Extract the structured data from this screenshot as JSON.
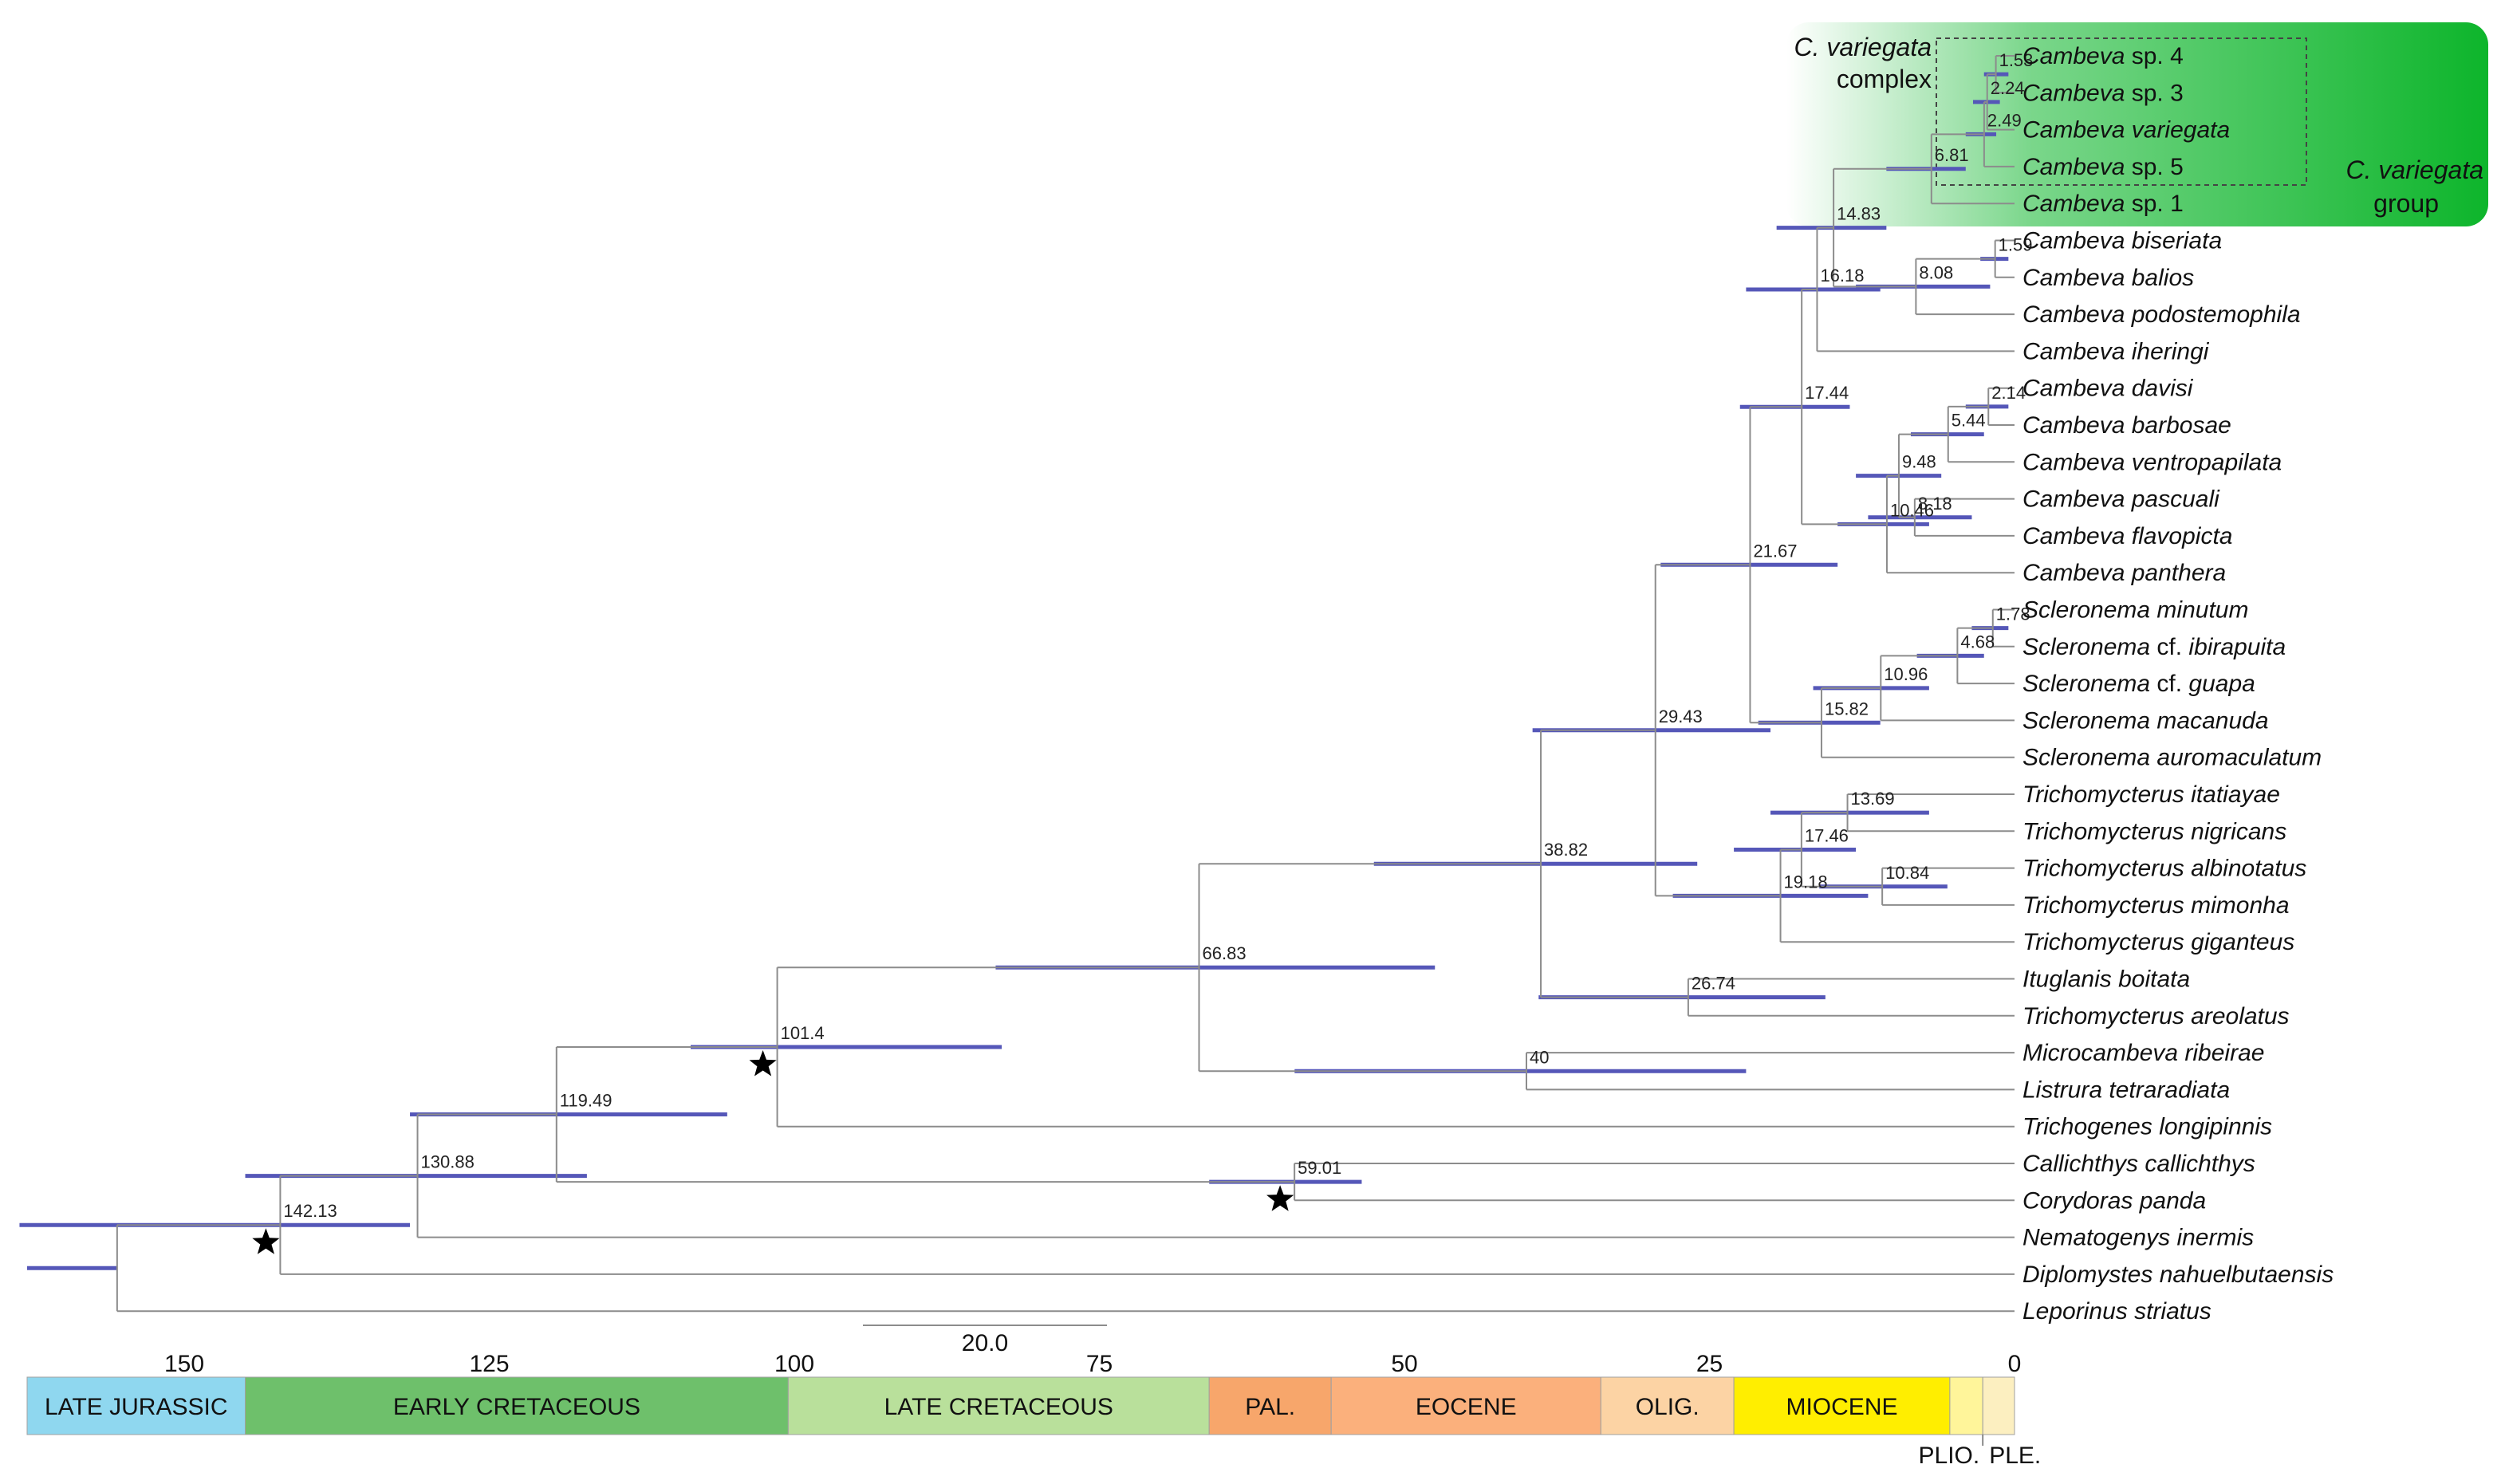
{
  "scale_bar": {
    "label": "20.0",
    "length_ma": 20
  },
  "axis": {
    "ticks": [
      150,
      125,
      100,
      75,
      50,
      25,
      0
    ]
  },
  "periods": [
    {
      "label": "LATE JURASSIC",
      "start": 163.5,
      "end": 145,
      "color": "#8fd7ef"
    },
    {
      "label": "EARLY CRETACEOUS",
      "start": 145,
      "end": 100.5,
      "color": "#6ec06b"
    },
    {
      "label": "LATE CRETACEOUS",
      "start": 100.5,
      "end": 66,
      "color": "#b9e09b"
    },
    {
      "label": "PAL.",
      "start": 66,
      "end": 56,
      "color": "#f7a66b"
    },
    {
      "label": "EOCENE",
      "start": 56,
      "end": 33.9,
      "color": "#fbb07c"
    },
    {
      "label": "OLIG.",
      "start": 33.9,
      "end": 23,
      "color": "#fcd3a4"
    },
    {
      "label": "MIOCENE",
      "start": 23,
      "end": 5.3,
      "color": "#ffee00"
    },
    {
      "label": "",
      "start": 5.3,
      "end": 2.6,
      "color": "#fff59a"
    },
    {
      "label": "",
      "start": 2.6,
      "end": 0,
      "color": "#fcefc0"
    }
  ],
  "period_small_labels": {
    "plio": "PLIO.",
    "ple": "PLE."
  },
  "groups": {
    "complex_label_line1": "C. variegata",
    "complex_label_line2": "complex",
    "group_label_line1": "C. variegata",
    "group_label_line2": "group",
    "group_color": "#0db52b"
  },
  "taxa": [
    {
      "id": "c4",
      "genus": "Cambeva",
      "epithet": "sp. 4"
    },
    {
      "id": "c3",
      "genus": "Cambeva",
      "epithet": "sp. 3"
    },
    {
      "id": "cvar",
      "genus": "Cambeva",
      "epithet": "variegata"
    },
    {
      "id": "c5",
      "genus": "Cambeva",
      "epithet": "sp. 5"
    },
    {
      "id": "c1",
      "genus": "Cambeva",
      "epithet": "sp. 1"
    },
    {
      "id": "cbis",
      "genus": "Cambeva",
      "epithet": "biseriata"
    },
    {
      "id": "cbal",
      "genus": "Cambeva",
      "epithet": "balios"
    },
    {
      "id": "cpod",
      "genus": "Cambeva",
      "epithet": "podostemophila"
    },
    {
      "id": "cihe",
      "genus": "Cambeva",
      "epithet": "iheringi"
    },
    {
      "id": "cdav",
      "genus": "Cambeva",
      "epithet": "davisi"
    },
    {
      "id": "cbar",
      "genus": "Cambeva",
      "epithet": "barbosae"
    },
    {
      "id": "cven",
      "genus": "Cambeva",
      "epithet": "ventropapilata"
    },
    {
      "id": "cpas",
      "genus": "Cambeva",
      "epithet": "pascuali"
    },
    {
      "id": "cfla",
      "genus": "Cambeva",
      "epithet": "flavopicta"
    },
    {
      "id": "cpan",
      "genus": "Cambeva",
      "epithet": "panthera"
    },
    {
      "id": "smin",
      "genus": "Scleronema",
      "epithet": "minutum"
    },
    {
      "id": "sibi",
      "genus": "Scleronema",
      "epithet": "cf. ibirapuita"
    },
    {
      "id": "sgua",
      "genus": "Scleronema",
      "epithet": "cf. guapa"
    },
    {
      "id": "smac",
      "genus": "Scleronema",
      "epithet": "macanuda"
    },
    {
      "id": "saur",
      "genus": "Scleronema",
      "epithet": "auromaculatum"
    },
    {
      "id": "tita",
      "genus": "Trichomycterus",
      "epithet": "itatiayae"
    },
    {
      "id": "tnig",
      "genus": "Trichomycterus",
      "epithet": "nigricans"
    },
    {
      "id": "talb",
      "genus": "Trichomycterus",
      "epithet": "albinotatus"
    },
    {
      "id": "tmim",
      "genus": "Trichomycterus",
      "epithet": "mimonha"
    },
    {
      "id": "tgig",
      "genus": "Trichomycterus",
      "epithet": "giganteus"
    },
    {
      "id": "iboi",
      "genus": "Ituglanis",
      "epithet": "boitata"
    },
    {
      "id": "tare",
      "genus": "Trichomycterus",
      "epithet": "areolatus"
    },
    {
      "id": "mrib",
      "genus": "Microcambeva",
      "epithet": "ribeirae"
    },
    {
      "id": "ltet",
      "genus": "Listrura",
      "epithet": "tetraradiata"
    },
    {
      "id": "tlon",
      "genus": "Trichogenes",
      "epithet": "longipinnis"
    },
    {
      "id": "ccal",
      "genus": "Callichthys",
      "epithet": "callichthys"
    },
    {
      "id": "cpnd",
      "genus": "Corydoras",
      "epithet": "panda"
    },
    {
      "id": "nine",
      "genus": "Nematogenys",
      "epithet": "inermis"
    },
    {
      "id": "dnah",
      "genus": "Diplomystes",
      "epithet": "nahuelbutaensis"
    },
    {
      "id": "lstr",
      "genus": "Leporinus",
      "epithet": "striatus"
    }
  ],
  "nodes": [
    {
      "id": "n1",
      "age": 1.53,
      "label": "1.53",
      "children": [
        "c4",
        "c3"
      ],
      "hpd": [
        0.5,
        2.5
      ]
    },
    {
      "id": "n2",
      "age": 2.24,
      "label": "2.24",
      "children": [
        "n1",
        "cvar"
      ],
      "hpd": [
        1.2,
        3.4
      ]
    },
    {
      "id": "n3",
      "age": 2.49,
      "label": "2.49",
      "children": [
        "n2",
        "c5"
      ],
      "hpd": [
        1.5,
        4.0
      ]
    },
    {
      "id": "n4",
      "age": 6.81,
      "label": "6.81",
      "children": [
        "n3",
        "c1"
      ],
      "hpd": [
        4.0,
        10.5
      ]
    },
    {
      "id": "n5",
      "age": 1.59,
      "label": "1.59",
      "children": [
        "cbis",
        "cbal"
      ],
      "hpd": [
        0.5,
        2.8
      ]
    },
    {
      "id": "n6",
      "age": 8.08,
      "label": "8.08",
      "children": [
        "n5",
        "cpod"
      ],
      "hpd": [
        2.0,
        13.0
      ]
    },
    {
      "id": "n7",
      "age": 14.83,
      "label": "14.83",
      "children": [
        "n4",
        "n6"
      ],
      "hpd": [
        10.5,
        19.5
      ]
    },
    {
      "id": "n8",
      "age": 16.18,
      "label": "16.18",
      "children": [
        "n7",
        "cihe"
      ],
      "hpd": [
        11.0,
        22.0
      ]
    },
    {
      "id": "n9",
      "age": 2.14,
      "label": "2.14",
      "children": [
        "cdav",
        "cbar"
      ],
      "hpd": [
        0.5,
        4.0
      ]
    },
    {
      "id": "n10",
      "age": 5.44,
      "label": "5.44",
      "children": [
        "n9",
        "cven"
      ],
      "hpd": [
        2.5,
        8.5
      ]
    },
    {
      "id": "n11",
      "age": 8.18,
      "label": "8.18",
      "children": [
        "cpas",
        "cfla"
      ],
      "hpd": [
        3.5,
        12.0
      ]
    },
    {
      "id": "n12",
      "age": 9.48,
      "label": "9.48",
      "children": [
        "n10",
        "n11"
      ],
      "hpd": [
        6.0,
        13.0
      ]
    },
    {
      "id": "n13",
      "age": 10.46,
      "label": "10.46",
      "children": [
        "n12",
        "cpan"
      ],
      "hpd": [
        7.0,
        14.5
      ]
    },
    {
      "id": "n14",
      "age": 17.44,
      "label": "17.44",
      "children": [
        "n8",
        "n13"
      ],
      "hpd": [
        13.5,
        22.5
      ]
    },
    {
      "id": "n15",
      "age": 1.78,
      "label": "1.78",
      "children": [
        "smin",
        "sibi"
      ],
      "hpd": [
        0.5,
        3.5
      ]
    },
    {
      "id": "n16",
      "age": 4.68,
      "label": "4.68",
      "children": [
        "n15",
        "sgua"
      ],
      "hpd": [
        2.5,
        8.0
      ]
    },
    {
      "id": "n17",
      "age": 10.96,
      "label": "10.96",
      "children": [
        "n16",
        "smac"
      ],
      "hpd": [
        7.0,
        16.5
      ]
    },
    {
      "id": "n18",
      "age": 15.82,
      "label": "15.82",
      "children": [
        "n17",
        "saur"
      ],
      "hpd": [
        11.0,
        21.0
      ]
    },
    {
      "id": "n19",
      "age": 21.67,
      "label": "21.67",
      "children": [
        "n14",
        "n18"
      ],
      "hpd": [
        14.5,
        29.0
      ]
    },
    {
      "id": "n20",
      "age": 13.69,
      "label": "13.69",
      "children": [
        "tita",
        "tnig"
      ],
      "hpd": [
        7.0,
        20.0
      ]
    },
    {
      "id": "n21",
      "age": 10.84,
      "label": "10.84",
      "children": [
        "talb",
        "tmim"
      ],
      "hpd": [
        5.5,
        16.0
      ]
    },
    {
      "id": "n22",
      "age": 17.46,
      "label": "17.46",
      "children": [
        "n20",
        "n21"
      ],
      "hpd": [
        13.0,
        23.0
      ]
    },
    {
      "id": "n23",
      "age": 19.18,
      "label": "19.18",
      "children": [
        "n22",
        "tgig"
      ],
      "hpd": [
        12.0,
        28.0
      ]
    },
    {
      "id": "n24",
      "age": 29.43,
      "label": "29.43",
      "children": [
        "n19",
        "n23"
      ],
      "hpd": [
        20.0,
        39.5
      ]
    },
    {
      "id": "n25",
      "age": 26.74,
      "label": "26.74",
      "children": [
        "iboi",
        "tare"
      ],
      "hpd": [
        15.5,
        39.0
      ]
    },
    {
      "id": "n26",
      "age": 38.82,
      "label": "38.82",
      "children": [
        "n24",
        "n25"
      ],
      "hpd": [
        26.0,
        52.5
      ]
    },
    {
      "id": "n27",
      "age": 40,
      "label": "40",
      "children": [
        "mrib",
        "ltet"
      ],
      "hpd": [
        22.0,
        59.0
      ]
    },
    {
      "id": "n28",
      "age": 66.83,
      "label": "66.83",
      "children": [
        "n26",
        "n27"
      ],
      "hpd": [
        47.5,
        83.5
      ]
    },
    {
      "id": "n29",
      "age": 101.4,
      "label": "101.4",
      "children": [
        "n28",
        "tlon"
      ],
      "hpd": [
        83.0,
        108.5
      ]
    },
    {
      "id": "n30",
      "age": 59.01,
      "label": "59.01",
      "children": [
        "ccal",
        "cpnd"
      ],
      "hpd": [
        53.5,
        66.0
      ]
    },
    {
      "id": "n31",
      "age": 119.49,
      "label": "119.49",
      "children": [
        "n29",
        "n30"
      ],
      "hpd": [
        105.5,
        131.5
      ]
    },
    {
      "id": "n32",
      "age": 130.88,
      "label": "130.88",
      "children": [
        "n31",
        "nine"
      ],
      "hpd": [
        117.0,
        145.0
      ]
    },
    {
      "id": "n33",
      "age": 142.13,
      "label": "142.13",
      "children": [
        "n32",
        "dnah"
      ],
      "hpd": [
        131.5,
        163.5
      ]
    },
    {
      "id": "n34",
      "age": 155.5,
      "label": "",
      "children": [
        "n33",
        "lstr"
      ],
      "hpd": [
        null,
        null
      ]
    }
  ],
  "stars": [
    "n29",
    "n30",
    "n33"
  ]
}
